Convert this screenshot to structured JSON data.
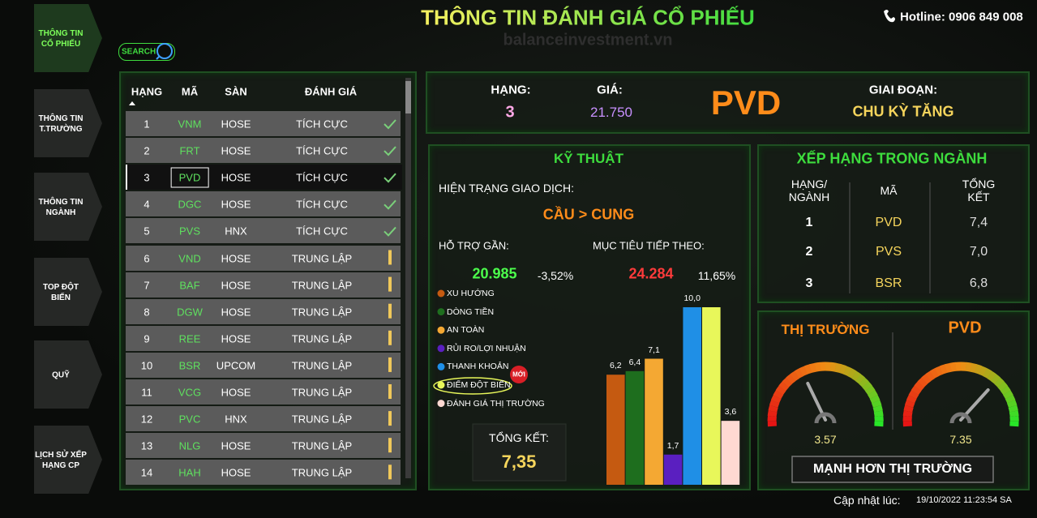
{
  "header": {
    "title": "THÔNG TIN ĐÁNH GIÁ CỔ PHIẾU",
    "watermark": "balanceinvestment.vn",
    "hotline": "Hotline: 0906 849 008"
  },
  "nav": [
    "THÔNG TIN CỔ PHIẾU",
    "THÔNG TIN T.TRƯỜNG",
    "THÔNG TIN NGÀNH",
    "TOP ĐỘT BIẾN",
    "QUỸ",
    "LỊCH SỬ XẾP HẠNG CP"
  ],
  "search": "SEARCH",
  "table": {
    "headers": [
      "HẠNG",
      "MÃ",
      "SÀN",
      "ĐÁNH GIÁ"
    ],
    "rows": [
      [
        "1",
        "VNM",
        "HOSE",
        "TÍCH CỰC"
      ],
      [
        "2",
        "FRT",
        "HOSE",
        "TÍCH CỰC"
      ],
      [
        "3",
        "PVD",
        "HOSE",
        "TÍCH CỰC"
      ],
      [
        "4",
        "DGC",
        "HOSE",
        "TÍCH CỰC"
      ],
      [
        "5",
        "PVS",
        "HNX",
        "TÍCH CỰC"
      ],
      [
        "6",
        "VND",
        "HOSE",
        "TRUNG LẬP"
      ],
      [
        "7",
        "BAF",
        "HOSE",
        "TRUNG LẬP"
      ],
      [
        "8",
        "DGW",
        "HOSE",
        "TRUNG LẬP"
      ],
      [
        "9",
        "REE",
        "HOSE",
        "TRUNG LẬP"
      ],
      [
        "10",
        "BSR",
        "UPCOM",
        "TRUNG LẬP"
      ],
      [
        "11",
        "VCG",
        "HOSE",
        "TRUNG LẬP"
      ],
      [
        "12",
        "PVC",
        "HNX",
        "TRUNG LẬP"
      ],
      [
        "13",
        "NLG",
        "HOSE",
        "TRUNG LẬP"
      ],
      [
        "14",
        "HAH",
        "HOSE",
        "TRUNG LẬP"
      ]
    ]
  },
  "summary": {
    "rank_label": "HẠNG:",
    "rank": "3",
    "price_label": "GIÁ:",
    "price": "21.750",
    "ticker": "PVD",
    "stage_label": "GIAI ĐOẠN:",
    "stage": "CHU KỲ TĂNG"
  },
  "technical": {
    "title": "KỸ THUẬT",
    "status_label": "HIỆN TRẠNG GIAO DỊCH:",
    "status": "CẦU > CUNG",
    "support_label": "HỖ TRỢ GẦN:",
    "support": "20.985",
    "support_change": "-3,52%",
    "target_label": "MỤC TIÊU TIẾP THEO:",
    "target": "24.284",
    "target_change": "11,65%",
    "badge": "MỚI",
    "total_label": "TỔNG KẾT:",
    "total": "7,35",
    "chart": {
      "type": "bar",
      "categories": [
        "XU HƯỚNG",
        "DÒNG TIỀN",
        "AN TOÀN",
        "RỦI RO/LỢI NHUẬN",
        "THANH KHOẢN",
        "ĐIỂM ĐỘT BIẾN",
        "ĐÁNH GIÁ THỊ TRƯỜNG"
      ],
      "values": [
        6.2,
        6.4,
        7.1,
        1.7,
        10,
        10,
        3.6
      ],
      "value_labels": [
        "6,2",
        "6,4",
        "7,1",
        "1,7",
        "10,0",
        null,
        "3,6"
      ],
      "colors": [
        "#c55a11",
        "#1e6e1e",
        "#f4a833",
        "#5a1fc0",
        "#1f8fe6",
        "#e8f75a",
        "#ffd9d2"
      ],
      "ylim": [
        0,
        10
      ]
    }
  },
  "industry": {
    "title": "XẾP HẠNG TRONG NGÀNH",
    "headers": [
      "HẠNG/ NGÀNH",
      "MÃ",
      "TỔNG KẾT"
    ],
    "rows": [
      [
        "1",
        "PVD",
        "7,4"
      ],
      [
        "2",
        "PVS",
        "7,0"
      ],
      [
        "3",
        "BSR",
        "6,8"
      ]
    ]
  },
  "market": {
    "gauges": [
      {
        "label": "THỊ TRƯỜNG",
        "value": 3.57,
        "range": [
          0,
          10
        ]
      },
      {
        "label": "PVD",
        "value": 7.35,
        "range": [
          0,
          10
        ]
      }
    ],
    "verdict": "MẠNH HƠN THỊ TRƯỜNG"
  },
  "footer": {
    "update_label": "Cập nhật lúc:",
    "update_time": "19/10/2022 11:23:54 SA"
  }
}
